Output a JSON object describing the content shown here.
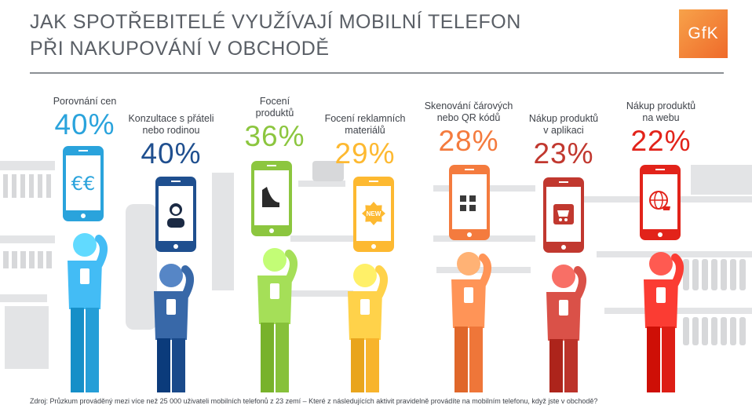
{
  "title_line1": "JAK SPOTŘEBITELÉ VYUŽÍVAJÍ MOBILNÍ TELEFON",
  "title_line2": "PŘI NAKUPOVÁNÍ V OBCHODĚ",
  "logo": "GfK",
  "source": "Zdroj: Průzkum prováděný mezi více než 25 000 uživateli mobilních telefonů z 23 zemí – Které z následujících aktivit pravidelně provádíte na mobilním telefonu, když jste v obchodě?",
  "chart_data": {
    "type": "bar",
    "categories": [
      "Porovnání cen",
      "Konzultace s přáteli nebo rodinou",
      "Focení produktů",
      "Focení reklamních materiálů",
      "Skenování čárových nebo QR kódů",
      "Nákup produktů v aplikaci",
      "Nákup produktů na webu"
    ],
    "values": [
      40,
      40,
      36,
      29,
      28,
      23,
      22
    ],
    "value_labels": [
      "40%",
      "40%",
      "36%",
      "29%",
      "28%",
      "23%",
      "22%"
    ],
    "colors": [
      "#2aa3dc",
      "#1f4f8f",
      "#8cc63f",
      "#fdb931",
      "#f47b3e",
      "#c1382f",
      "#e2231a"
    ],
    "icons": [
      "euro-icon",
      "woman-avatar-icon",
      "high-heel-shoe-icon",
      "new-badge-icon",
      "qr-code-icon",
      "shopping-cart-icon",
      "globe-cart-icon"
    ],
    "title": "JAK SPOTŘEBITELÉ VYUŽÍVAJÍ MOBILNÍ TELEFON PŘI NAKUPOVÁNÍ V OBCHODĚ"
  },
  "items": [
    {
      "label_lines": [
        "Porovnání cen"
      ],
      "value": "40%"
    },
    {
      "label_lines": [
        "Konzultace s přáteli",
        "nebo rodinou"
      ],
      "value": "40%"
    },
    {
      "label_lines": [
        "Focení",
        "produktů"
      ],
      "value": "36%"
    },
    {
      "label_lines": [
        "Focení reklamních",
        "materiálů"
      ],
      "value": "29%"
    },
    {
      "label_lines": [
        "Skenování čárových",
        "nebo QR kódů"
      ],
      "value": "28%"
    },
    {
      "label_lines": [
        "Nákup produktů",
        "v aplikaci"
      ],
      "value": "23%"
    },
    {
      "label_lines": [
        "Nákup produktů",
        "na webu"
      ],
      "value": "22%"
    }
  ],
  "badge_text": "NEW",
  "euro_text": "€€"
}
